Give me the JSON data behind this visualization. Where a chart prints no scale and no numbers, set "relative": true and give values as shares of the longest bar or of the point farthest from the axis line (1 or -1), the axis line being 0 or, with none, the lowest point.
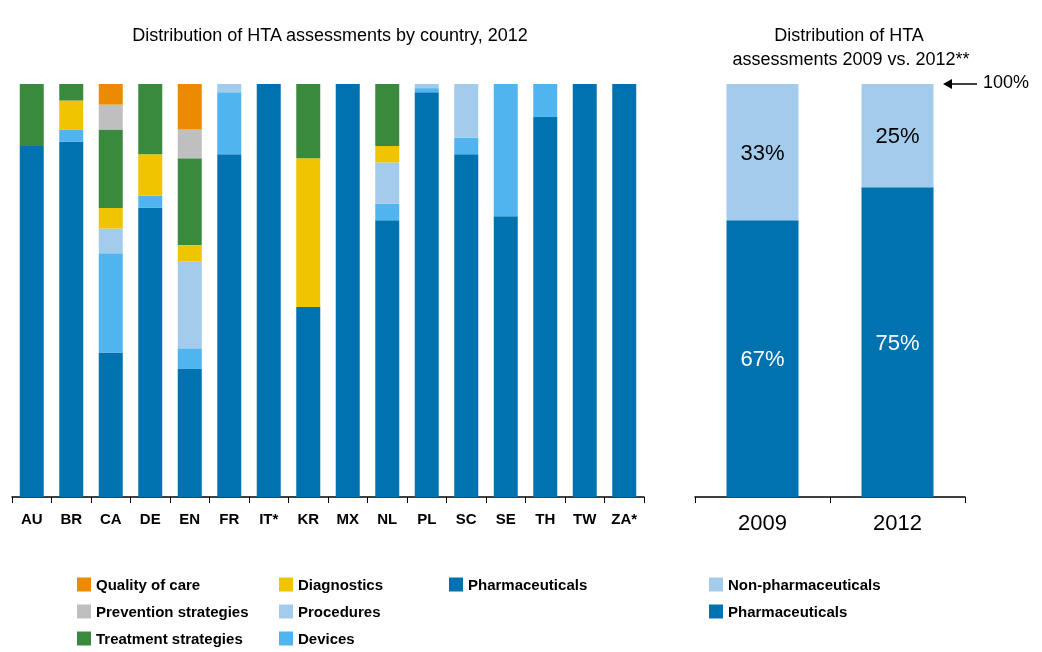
{
  "chart_data": [
    {
      "type": "bar",
      "title": "Distribution of HTA assessments by country, 2012",
      "relative": true,
      "stacked": true,
      "legend": "bottom",
      "categories": [
        "AU",
        "BR",
        "CA",
        "DE",
        "EN",
        "FR",
        "IT*",
        "KR",
        "MX",
        "NL",
        "PL",
        "SC",
        "SE",
        "TH",
        "TW",
        "ZA*"
      ],
      "series": [
        {
          "name": "Pharmaceuticals",
          "color": "#0072b0",
          "values": [
            0.85,
            0.86,
            0.35,
            0.7,
            0.31,
            0.83,
            1,
            0.46,
            1,
            0.67,
            0.98,
            0.83,
            0.68,
            0.92,
            1,
            1
          ]
        },
        {
          "name": "Devices",
          "color": "#50b4ef",
          "values": [
            null,
            0.03,
            0.24,
            0.03,
            0.05,
            0.15,
            null,
            null,
            null,
            0.04,
            0.01,
            0.04,
            0.32,
            0.08,
            null,
            null
          ]
        },
        {
          "name": "Procedures",
          "color": "#a2cbec",
          "values": [
            null,
            null,
            0.06,
            null,
            0.21,
            0.02,
            null,
            null,
            null,
            0.1,
            0.01,
            0.13,
            null,
            null,
            null,
            null
          ]
        },
        {
          "name": "Diagnostics",
          "color": "#f0c400",
          "values": [
            null,
            0.07,
            0.05,
            0.1,
            0.04,
            null,
            null,
            0.36,
            null,
            0.04,
            null,
            null,
            null,
            null,
            null,
            null
          ]
        },
        {
          "name": "Treatment strategies",
          "color": "#3a8a3e",
          "values": [
            0.15,
            0.04,
            0.19,
            0.17,
            0.21,
            null,
            null,
            0.18,
            null,
            0.15,
            null,
            null,
            null,
            null,
            null,
            null
          ]
        },
        {
          "name": "Prevention strategies",
          "color": "#bfbfbf",
          "values": [
            null,
            null,
            0.06,
            null,
            0.07,
            null,
            null,
            null,
            null,
            null,
            null,
            null,
            null,
            null,
            null,
            null
          ]
        },
        {
          "name": "Quality of care",
          "color": "#ed8b00",
          "values": [
            null,
            null,
            0.05,
            null,
            0.11,
            null,
            null,
            null,
            null,
            null,
            null,
            null,
            null,
            null,
            null,
            null
          ]
        }
      ]
    },
    {
      "type": "bar",
      "title": "Distribution of HTA assessments 2009 vs. 2012**",
      "stacked": true,
      "legend": "bottom",
      "categories": [
        "2009",
        "2012"
      ],
      "series": [
        {
          "name": "Pharmaceuticals",
          "color": "#0072b0",
          "values": [
            67,
            75
          ],
          "value_labels": [
            "67%",
            "75%"
          ]
        },
        {
          "name": "Non-pharmaceuticals",
          "color": "#a2cbec",
          "values": [
            33,
            25
          ],
          "value_labels": [
            "33%",
            "25%"
          ]
        }
      ],
      "annotations": [
        "100%"
      ]
    }
  ]
}
